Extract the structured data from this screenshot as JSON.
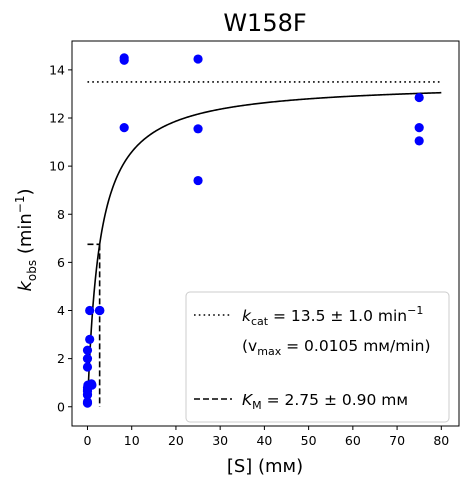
{
  "chart_data": {
    "type": "scatter",
    "title": "W158F",
    "xlabel": "[S] (mм)",
    "ylabel_main": "k",
    "ylabel_sub": "obs",
    "ylabel_rest": " (min",
    "ylabel_exp": "−1",
    "ylabel_close": ")",
    "xlim": [
      -3.5,
      84
    ],
    "ylim": [
      -0.8,
      15.2
    ],
    "xticks": [
      0,
      10,
      20,
      30,
      40,
      50,
      60,
      70,
      80
    ],
    "yticks": [
      0,
      2,
      4,
      6,
      8,
      10,
      12,
      14
    ],
    "grid": false,
    "points": {
      "color": "#0000ff",
      "x": [
        0,
        0,
        0,
        0,
        0,
        0,
        0,
        0,
        0,
        0,
        0.1,
        0.5,
        0.5,
        0.9,
        1.0,
        2.7,
        2.8,
        8.3,
        8.3,
        8.3,
        25,
        25,
        25,
        75,
        75,
        75
      ],
      "y": [
        0.15,
        0.2,
        0.5,
        0.65,
        0.8,
        1.65,
        2.0,
        2.35,
        0.5,
        0.7,
        0.9,
        2.8,
        4.0,
        0.95,
        0.9,
        4.0,
        4.0,
        14.4,
        14.5,
        11.6,
        14.45,
        11.55,
        9.4,
        12.85,
        11.6,
        11.05
      ]
    },
    "fit_curve": {
      "style": "solid",
      "color": "#000000",
      "kcat": 13.5,
      "km": 2.75,
      "x_range": [
        0,
        80
      ]
    },
    "kcat_line": {
      "style": "dotted",
      "color": "#000000",
      "y": 13.5,
      "x_range": [
        0,
        80
      ]
    },
    "km_lines": {
      "style": "dashed",
      "color": "#000000",
      "half_y": 6.75,
      "km_x": 2.75,
      "x_start": 0
    },
    "legend": {
      "position": "lower right",
      "kcat": {
        "pre": "k",
        "sub": "cat",
        "post": " = 13.5 ± 1.0 min",
        "sup": "−1"
      },
      "vmax": {
        "open": "(v",
        "sub": "max",
        "post": " = 0.0105 mм/min)"
      },
      "km": {
        "pre": "K",
        "sub": "M",
        "post": " = 2.75 ± 0.90 mм"
      }
    }
  }
}
